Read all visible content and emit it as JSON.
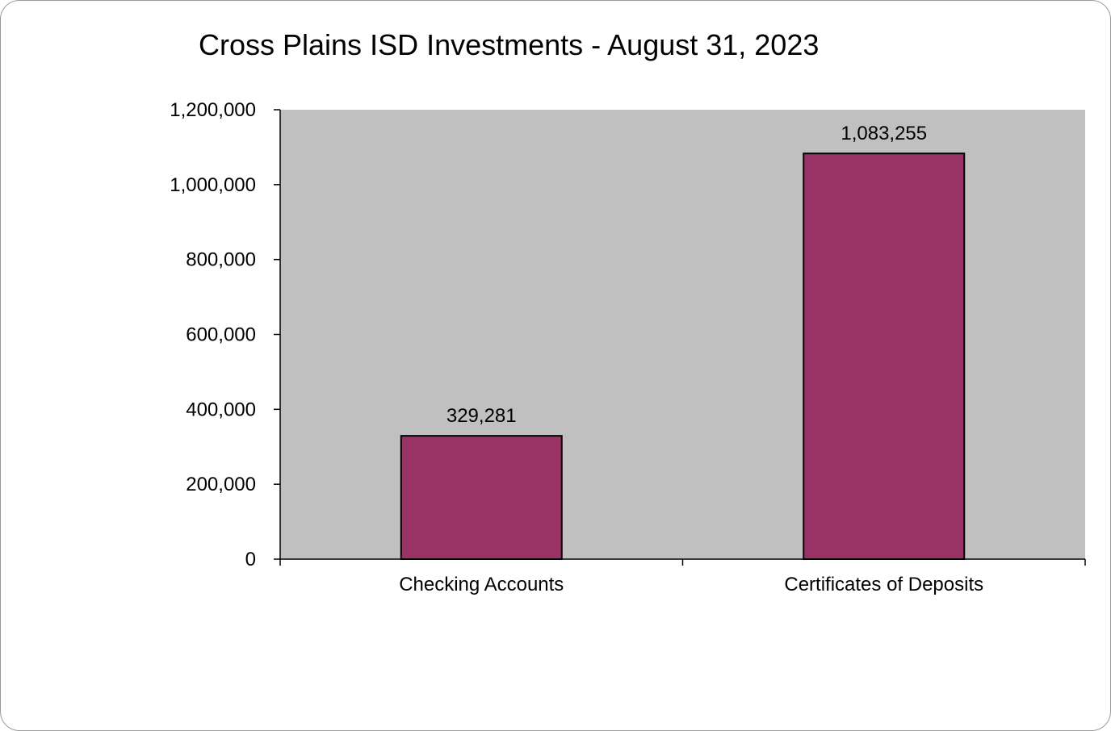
{
  "chart_data": {
    "type": "bar",
    "title": "Cross Plains ISD Investments - August 31, 2023",
    "categories": [
      "Checking Accounts",
      "Certificates of Deposits"
    ],
    "values": [
      329281,
      1083255
    ],
    "data_labels": [
      "329,281",
      "1,083,255"
    ],
    "ylim": [
      0,
      1200000
    ],
    "yticks": [
      0,
      200000,
      400000,
      600000,
      800000,
      1000000,
      1200000
    ],
    "ytick_labels": [
      "0",
      "200,000",
      "400,000",
      "600,000",
      "800,000",
      "1,000,000",
      "1,200,000"
    ],
    "xlabel": "",
    "ylabel": "",
    "grid": false,
    "legend": "none",
    "colors": {
      "bar_fill": "#993366",
      "bar_stroke": "#000000",
      "plot_background": "#c0c0c0",
      "axis": "#000000"
    }
  }
}
